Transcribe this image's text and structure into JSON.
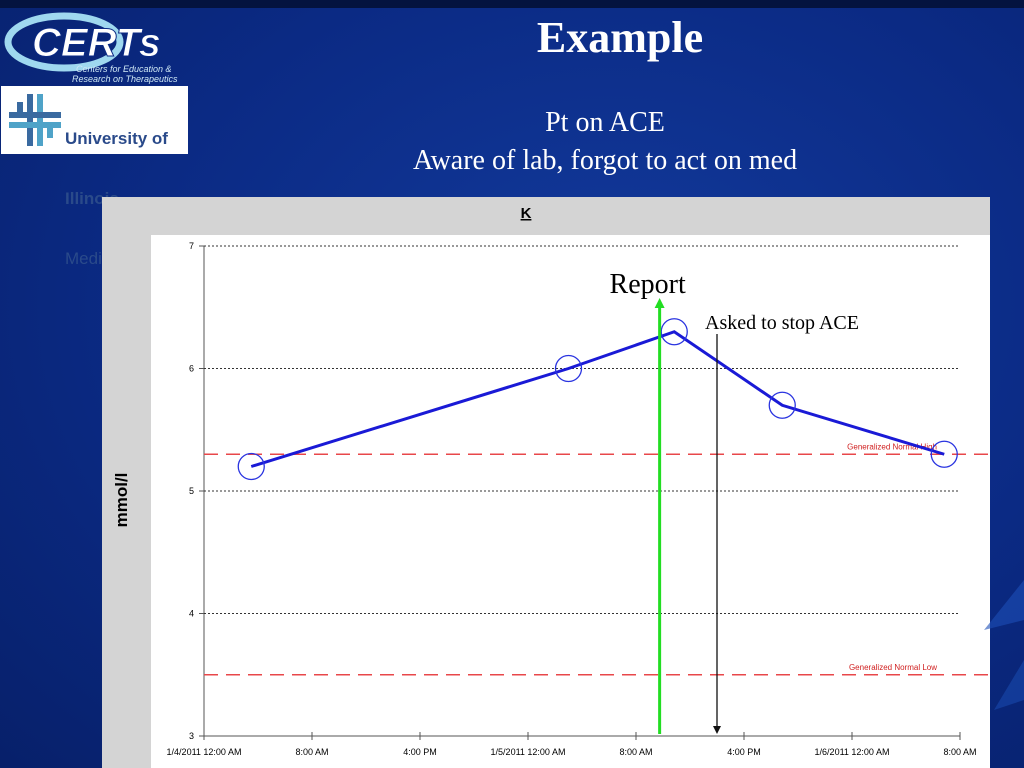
{
  "slide": {
    "title": "Example",
    "subtitle_line1": "Pt on ACE",
    "subtitle_line2": "Aware of lab, forgot to act on med"
  },
  "logos": {
    "certs": {
      "name": "CERTs",
      "tagline_line1": "Centers for Education &",
      "tagline_line2": "Research on Therapeutics"
    },
    "uic": {
      "line1": "University of",
      "line2": "Illinois",
      "line3": "Medical Center"
    }
  },
  "chart_data": {
    "type": "line",
    "title": "K",
    "ylabel": "mmol/l",
    "ylim": [
      3,
      7
    ],
    "yticks": [
      3,
      4,
      5,
      6,
      7
    ],
    "xlim": [
      "1/4/2011 00:00",
      "1/6/2011 08:00"
    ],
    "xtick_labels": [
      "1/4/2011 12:00 AM",
      "8:00 AM",
      "4:00 PM",
      "1/5/2011 12:00 AM",
      "8:00 AM",
      "4:00 PM",
      "1/6/2011 12:00 AM",
      "8:00 AM"
    ],
    "grid": true,
    "series": [
      {
        "color": "#1a1ad6",
        "points": [
          {
            "x": "1/4/2011 03:30",
            "y": 5.2
          },
          {
            "x": "1/5/2011 03:00",
            "y": 6.0
          },
          {
            "x": "1/5/2011 10:50",
            "y": 6.3
          },
          {
            "x": "1/5/2011 18:50",
            "y": 5.7
          },
          {
            "x": "1/6/2011 06:50",
            "y": 5.3
          }
        ]
      }
    ],
    "reference_lines": [
      {
        "label": "Generalized Normal High",
        "y": 5.3,
        "color": "#e8474a"
      },
      {
        "label": "Generalized Normal Low",
        "y": 3.5,
        "color": "#e8474a"
      }
    ],
    "annotations": [
      {
        "label": "Report",
        "x": "1/5/2011 09:45",
        "direction": "up",
        "color": "#22dd22"
      },
      {
        "label": "Asked to stop ACE",
        "x": "1/5/2011 14:00",
        "direction": "down",
        "color": "#111111"
      }
    ]
  }
}
